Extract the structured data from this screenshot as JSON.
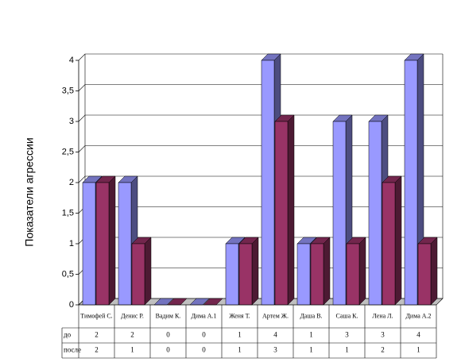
{
  "chart_data": {
    "type": "bar3d",
    "y_label": "Показатели агрессии",
    "categories": [
      "Тимофей С.",
      "Денис Р.",
      "Вадим К.",
      "Дима А.1",
      "Женя Т.",
      "Артем Ж.",
      "Даша В.",
      "Саша К.",
      "Лена Л.",
      "Дима А.2"
    ],
    "series": [
      {
        "name": "до",
        "color": "#9999ff",
        "values": [
          2,
          2,
          0,
          0,
          1,
          4,
          1,
          3,
          3,
          4
        ]
      },
      {
        "name": "после",
        "color": "#993366",
        "values": [
          2,
          1,
          0,
          0,
          1,
          3,
          1,
          1,
          2,
          1
        ]
      }
    ],
    "ylim": [
      0,
      4
    ],
    "yticks": [
      0,
      {
        "value": 0.5,
        "label": "0,5"
      },
      1,
      {
        "value": 1.5,
        "label": "1,5"
      },
      2,
      {
        "value": 2.5,
        "label": "2,5"
      },
      3,
      {
        "value": 3.5,
        "label": "3,5"
      },
      4
    ],
    "grid": true
  }
}
